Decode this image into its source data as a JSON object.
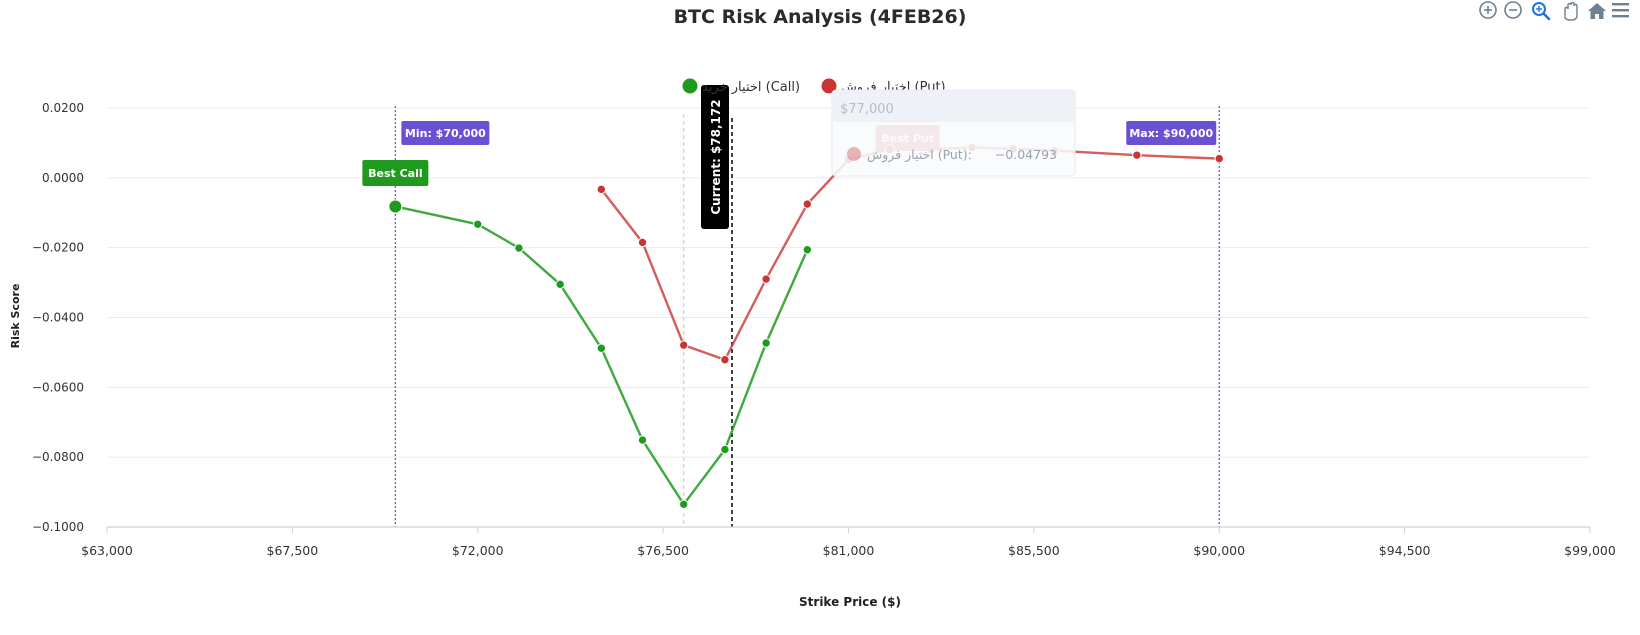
{
  "chart_data": {
    "type": "line",
    "title": "BTC Risk Analysis (4FEB26)",
    "xlabel": "Strike Price ($)",
    "ylabel": "Risk Score",
    "xlim": [
      63000,
      99000
    ],
    "ylim": [
      -0.1,
      0.02
    ],
    "x_ticks": [
      63000,
      67500,
      72000,
      76500,
      81000,
      85500,
      90000,
      94500,
      99000
    ],
    "x_tick_labels": [
      "$63,000",
      "$67,500",
      "$72,000",
      "$76,500",
      "$81,000",
      "$85,500",
      "$90,000",
      "$94,500",
      "$99,000"
    ],
    "y_ticks": [
      0.02,
      0.0,
      -0.02,
      -0.04,
      -0.06,
      -0.08,
      -0.1
    ],
    "y_tick_labels": [
      "0.0200",
      "0.0000",
      "−0.0200",
      "−0.0400",
      "−0.0600",
      "−0.0800",
      "−0.1000"
    ],
    "grid": true,
    "legend_position": "top-center",
    "series": [
      {
        "name": "اختیار خرید (Call)",
        "color": "#1f9a1f",
        "x": [
          70000,
          72000,
          73000,
          74000,
          75000,
          76000,
          77000,
          78000,
          79000,
          80000
        ],
        "y": [
          -0.0082,
          -0.0133,
          -0.0201,
          -0.0305,
          -0.0488,
          -0.0751,
          -0.0935,
          -0.0778,
          -0.0473,
          -0.0206
        ]
      },
      {
        "name": "اختیار فروش (Put)",
        "color": "#c93535",
        "x": [
          75000,
          76000,
          77000,
          78000,
          79000,
          80000,
          81000,
          82000,
          83000,
          84000,
          85000,
          86000,
          88000,
          90000
        ],
        "y": [
          -0.0033,
          -0.0185,
          -0.0479,
          -0.0521,
          -0.029,
          -0.0075,
          0.0052,
          0.0082,
          0.0082,
          0.0087,
          0.0083,
          0.0078,
          0.0065,
          0.0055
        ]
      }
    ],
    "reference_lines": {
      "min": {
        "x": 70000,
        "label": "Min: $70,000",
        "color": "#6a50d3"
      },
      "max": {
        "x": 90000,
        "label": "Max: $90,000",
        "color": "#6a50d3"
      },
      "current": {
        "x": 78172,
        "label": "Current: $78,172",
        "color": "#000000"
      },
      "hover": {
        "x": 77000
      }
    },
    "annotations": {
      "best_call": {
        "x": 70000,
        "y": -0.0082,
        "label": "Best Call",
        "color": "#1f9a1f"
      },
      "best_put": {
        "x": 82000,
        "y": 0.0082,
        "label": "Best Put",
        "color": "#d36a6a"
      }
    },
    "tooltip": {
      "header": "$77,000",
      "series_name": "اختیار فروش (Put):",
      "value": "−0.04793",
      "color": "#c93535"
    }
  },
  "toolbar": {
    "icons": [
      "zoom-in-icon",
      "zoom-out-icon",
      "zoom-selection-icon",
      "pan-hand-icon",
      "home-icon",
      "menu-icon"
    ]
  }
}
